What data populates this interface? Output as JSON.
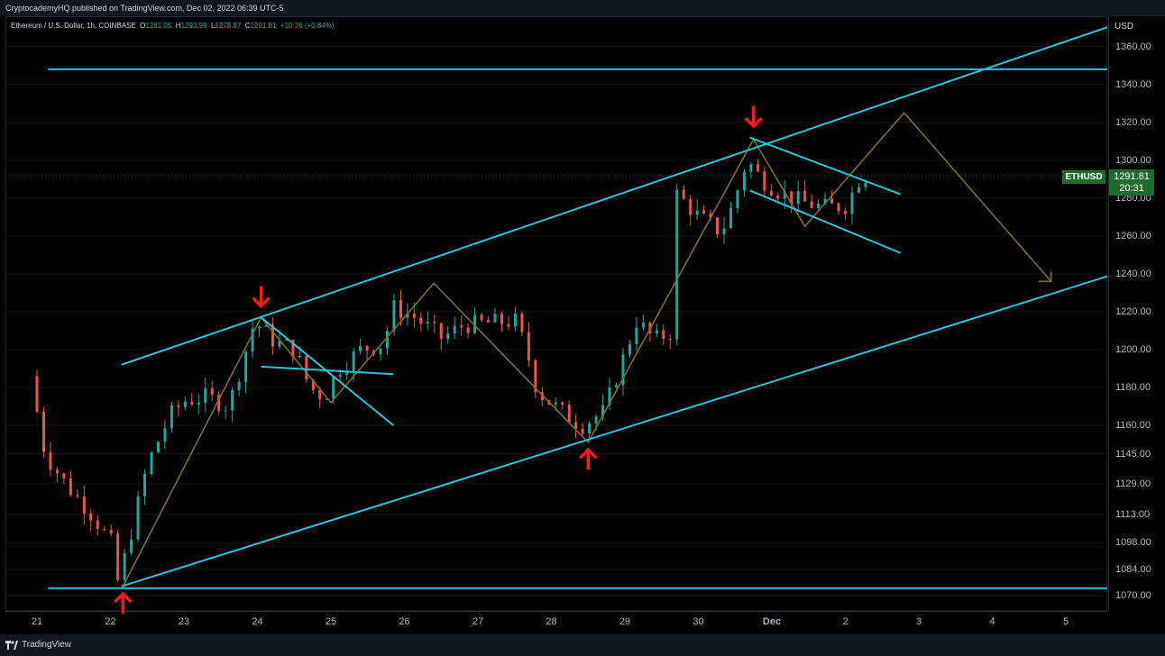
{
  "header": {
    "published": "CryptocademyHQ published on TradingView.com, Dec 02, 2022 06:39 UTC-5"
  },
  "symbol_info": {
    "title": "Ethereum / U.S. Dollar, 1h, COINBASE",
    "open_label": "O",
    "open": "1281.05",
    "high_label": "H",
    "high": "1293.99",
    "low_label": "L",
    "low": "1278.87",
    "close_label": "C",
    "close": "1291.81",
    "change": "+10.76 (+0.84%)"
  },
  "axis": {
    "currency": "USD",
    "price_labels": [
      "1360.00",
      "1340.00",
      "1320.00",
      "1300.00",
      "1280.00",
      "1260.00",
      "1240.00",
      "1220.00",
      "1200.00",
      "1180.00",
      "1160.00",
      "1145.00",
      "1129.00",
      "1113.00",
      "1098.00",
      "1084.00",
      "1070.00"
    ],
    "date_labels": [
      "21",
      "22",
      "23",
      "24",
      "25",
      "26",
      "27",
      "28",
      "29",
      "30",
      "Dec",
      "2",
      "3",
      "4",
      "5"
    ]
  },
  "current": {
    "ticker": "ETHUSD",
    "price": "1291.81",
    "countdown": "20:31"
  },
  "footer": {
    "brand": "TradingView"
  },
  "colors": {
    "up": "#26a69a",
    "down": "#ef5350",
    "trendline": "#26c6da",
    "path": "#7c6f2a",
    "arrow": "#ff1a1a",
    "tag": "#1f6b30"
  },
  "chart_data": {
    "type": "candlestick",
    "title": "Ethereum / U.S. Dollar, 1h, COINBASE",
    "ylabel": "USD",
    "ylim": [
      1062,
      1376
    ],
    "x_dates": [
      "21",
      "22",
      "23",
      "24",
      "25",
      "26",
      "27",
      "28",
      "29",
      "30",
      "Dec",
      "2",
      "3",
      "4",
      "5"
    ],
    "price_path": [
      [
        21.0,
        1186
      ],
      [
        21.2,
        1145
      ],
      [
        21.5,
        1128
      ],
      [
        21.8,
        1115
      ],
      [
        22.1,
        1098
      ],
      [
        22.17,
        1075
      ],
      [
        22.3,
        1092
      ],
      [
        22.6,
        1140
      ],
      [
        22.9,
        1165
      ],
      [
        23.1,
        1173
      ],
      [
        23.4,
        1175
      ],
      [
        23.7,
        1170
      ],
      [
        23.9,
        1195
      ],
      [
        24.05,
        1215
      ],
      [
        24.3,
        1205
      ],
      [
        24.6,
        1200
      ],
      [
        24.8,
        1180
      ],
      [
        25.0,
        1175
      ],
      [
        25.2,
        1190
      ],
      [
        25.5,
        1200
      ],
      [
        25.8,
        1203
      ],
      [
        25.95,
        1222
      ],
      [
        26.2,
        1218
      ],
      [
        26.4,
        1212
      ],
      [
        26.6,
        1206
      ],
      [
        26.9,
        1213
      ],
      [
        27.2,
        1214
      ],
      [
        27.6,
        1215
      ],
      [
        27.75,
        1200
      ],
      [
        27.9,
        1178
      ],
      [
        28.2,
        1168
      ],
      [
        28.5,
        1160
      ],
      [
        28.8,
        1167
      ],
      [
        29.0,
        1188
      ],
      [
        29.25,
        1215
      ],
      [
        29.5,
        1205
      ],
      [
        29.75,
        1210
      ],
      [
        29.8,
        1282
      ],
      [
        30.1,
        1270
      ],
      [
        30.4,
        1262
      ],
      [
        30.55,
        1275
      ],
      [
        30.75,
        1300
      ],
      [
        30.95,
        1290
      ],
      [
        31.2,
        1283
      ],
      [
        31.5,
        1278
      ],
      [
        31.8,
        1275
      ],
      [
        32.1,
        1276
      ],
      [
        32.3,
        1291.81
      ]
    ],
    "trendlines": [
      {
        "from": [
          21.15,
          1348
        ],
        "to": [
          36.0,
          1348
        ]
      },
      {
        "from": [
          21.15,
          1074
        ],
        "to": [
          36.0,
          1074
        ]
      },
      {
        "from": [
          22.15,
          1075
        ],
        "to": [
          36.0,
          1244
        ]
      },
      {
        "from": [
          22.15,
          1192
        ],
        "to": [
          36.0,
          1376
        ]
      },
      {
        "from": [
          24.05,
          1191
        ],
        "to": [
          25.85,
          1187
        ]
      },
      {
        "from": [
          24.05,
          1217
        ],
        "to": [
          25.85,
          1160
        ]
      },
      {
        "from": [
          30.7,
          1312
        ],
        "to": [
          32.75,
          1282
        ]
      },
      {
        "from": [
          30.7,
          1284
        ],
        "to": [
          32.75,
          1251
        ]
      }
    ],
    "projection": [
      [
        22.17,
        1075
      ],
      [
        24.05,
        1217
      ],
      [
        25.0,
        1172
      ],
      [
        26.4,
        1235
      ],
      [
        28.5,
        1151
      ],
      [
        30.75,
        1311
      ],
      [
        31.45,
        1265
      ],
      [
        32.8,
        1325
      ],
      [
        34.8,
        1236
      ]
    ],
    "marks": [
      {
        "type": "up",
        "at": [
          22.17,
          1072
        ]
      },
      {
        "type": "down",
        "at": [
          24.05,
          1222
        ]
      },
      {
        "type": "up",
        "at": [
          28.5,
          1148
        ]
      },
      {
        "type": "down",
        "at": [
          30.75,
          1317
        ]
      }
    ]
  }
}
